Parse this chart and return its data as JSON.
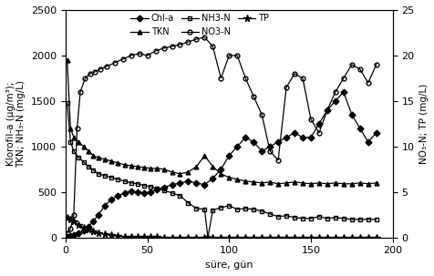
{
  "xlabel": "süre, gün",
  "ylabel_left": "Klorofil-a (μg/m³);\nTKN; NH₃-N (mg/L)",
  "ylabel_right": "NO₃-N; TP (mg/L)",
  "xlim": [
    0,
    200
  ],
  "ylim_left": [
    0,
    2500
  ],
  "ylim_right": [
    0,
    25
  ],
  "xticks": [
    0,
    50,
    100,
    150,
    200
  ],
  "yticks_left": [
    0,
    500,
    1000,
    1500,
    2000,
    2500
  ],
  "yticks_right": [
    0,
    5,
    10,
    15,
    20,
    25
  ],
  "chl_a_x": [
    1,
    3,
    5,
    8,
    11,
    14,
    17,
    20,
    24,
    28,
    32,
    36,
    40,
    44,
    48,
    52,
    56,
    60,
    65,
    70,
    75,
    80,
    85,
    90,
    95,
    100,
    105,
    110,
    115,
    120,
    125,
    130,
    135,
    140,
    145,
    150,
    155,
    160,
    165,
    170,
    175,
    180,
    185,
    190
  ],
  "chl_a_y": [
    10,
    20,
    30,
    50,
    80,
    120,
    180,
    250,
    350,
    420,
    460,
    490,
    510,
    500,
    490,
    500,
    530,
    550,
    580,
    600,
    620,
    600,
    580,
    650,
    750,
    900,
    1000,
    1100,
    1050,
    950,
    1000,
    1050,
    1100,
    1150,
    1100,
    1100,
    1250,
    1400,
    1500,
    1600,
    1350,
    1200,
    1050,
    1150
  ],
  "tkn_x": [
    1,
    3,
    5,
    8,
    11,
    14,
    17,
    20,
    24,
    28,
    32,
    36,
    40,
    44,
    48,
    52,
    56,
    60,
    65,
    70,
    75,
    80,
    85,
    90,
    95,
    100,
    105,
    110,
    115,
    120,
    125,
    130,
    135,
    140,
    145,
    150,
    155,
    160,
    165,
    170,
    175,
    180,
    185,
    190
  ],
  "tkn_y": [
    1950,
    1200,
    1100,
    1050,
    1000,
    950,
    900,
    880,
    860,
    840,
    820,
    800,
    790,
    780,
    770,
    760,
    760,
    750,
    720,
    700,
    720,
    780,
    900,
    780,
    700,
    660,
    640,
    620,
    610,
    600,
    610,
    590,
    600,
    610,
    600,
    590,
    600,
    590,
    600,
    590,
    590,
    600,
    590,
    600
  ],
  "nh3_x": [
    1,
    3,
    5,
    8,
    11,
    14,
    17,
    20,
    24,
    28,
    32,
    36,
    40,
    44,
    48,
    52,
    56,
    60,
    65,
    70,
    75,
    80,
    85,
    87,
    90,
    95,
    100,
    105,
    110,
    115,
    120,
    125,
    130,
    135,
    140,
    145,
    150,
    155,
    160,
    165,
    170,
    175,
    180,
    185,
    190
  ],
  "nh3_y": [
    1480,
    1050,
    950,
    880,
    830,
    780,
    740,
    700,
    680,
    660,
    640,
    620,
    600,
    590,
    570,
    560,
    540,
    520,
    490,
    460,
    380,
    320,
    310,
    0,
    300,
    330,
    350,
    310,
    320,
    310,
    290,
    260,
    230,
    240,
    220,
    210,
    210,
    230,
    210,
    220,
    210,
    200,
    200,
    200,
    200
  ],
  "no3_x": [
    1,
    3,
    5,
    7,
    9,
    12,
    15,
    18,
    21,
    25,
    30,
    35,
    40,
    45,
    50,
    55,
    60,
    65,
    70,
    75,
    80,
    85,
    90,
    95,
    100,
    105,
    110,
    115,
    120,
    125,
    130,
    135,
    140,
    145,
    150,
    155,
    160,
    165,
    170,
    175,
    180,
    185,
    190
  ],
  "no3_y": [
    50,
    100,
    250,
    1200,
    1600,
    1750,
    1800,
    1820,
    1850,
    1880,
    1920,
    1960,
    2000,
    2020,
    2000,
    2050,
    2080,
    2100,
    2120,
    2150,
    2180,
    2200,
    2100,
    1750,
    2000,
    2000,
    1750,
    1550,
    1350,
    950,
    850,
    1650,
    1800,
    1750,
    1300,
    1150,
    1400,
    1600,
    1750,
    1900,
    1850,
    1700,
    1900
  ],
  "tp_x": [
    1,
    3,
    5,
    8,
    11,
    14,
    17,
    20,
    24,
    28,
    32,
    36,
    40,
    44,
    48,
    52,
    56,
    60,
    65,
    70,
    75,
    80,
    85,
    90,
    95,
    100,
    105,
    110,
    115,
    120,
    125,
    130,
    135,
    140,
    145,
    150,
    155,
    160,
    165,
    170,
    175,
    180,
    185,
    190
  ],
  "tp_y": [
    220,
    200,
    175,
    140,
    110,
    85,
    65,
    50,
    35,
    25,
    15,
    10,
    8,
    5,
    3,
    3,
    3,
    2,
    2,
    2,
    2,
    2,
    2,
    2,
    2,
    2,
    2,
    2,
    2,
    2,
    2,
    2,
    2,
    2,
    2,
    2,
    2,
    2,
    2,
    2,
    2,
    2,
    2,
    2
  ],
  "color": "black",
  "linewidth": 0.9,
  "markersize": 3.5
}
